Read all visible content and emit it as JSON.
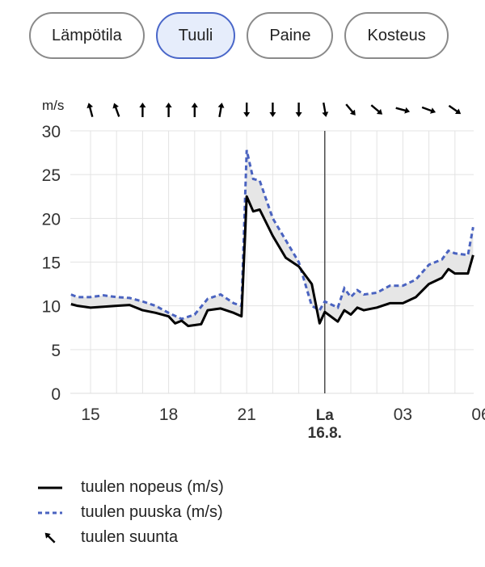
{
  "tabs": [
    {
      "label": "Lämpötila",
      "selected": false
    },
    {
      "label": "Tuuli",
      "selected": true
    },
    {
      "label": "Paine",
      "selected": false
    },
    {
      "label": "Kosteus",
      "selected": false
    }
  ],
  "chart_data": {
    "type": "line",
    "unit_label": "m/s",
    "ylim": [
      0,
      30
    ],
    "yticks": [
      0,
      5,
      10,
      15,
      20,
      25,
      30
    ],
    "xlim_hours": [
      14.23,
      29.7
    ],
    "xticks": [
      {
        "h": 15,
        "label": "15"
      },
      {
        "h": 18,
        "label": "18"
      },
      {
        "h": 21,
        "label": "21"
      },
      {
        "h": 24,
        "label": "La",
        "sub": "16.8."
      },
      {
        "h": 27,
        "label": "03"
      },
      {
        "h": 30,
        "label": "06"
      }
    ],
    "current_time_hour": 24,
    "series": [
      {
        "name": "tuulen nopeus (m/s)",
        "color": "#000000",
        "style": "solid",
        "x": [
          14.25,
          14.5,
          15,
          15.5,
          16,
          16.5,
          17,
          17.5,
          18,
          18.25,
          18.5,
          18.75,
          19,
          19.25,
          19.5,
          20,
          20.5,
          20.8,
          21,
          21.25,
          21.5,
          22,
          22.5,
          23,
          23.5,
          23.8,
          24,
          24.5,
          24.75,
          25,
          25.25,
          25.5,
          26,
          26.5,
          27,
          27.5,
          28,
          28.5,
          28.75,
          29,
          29.5,
          29.7
        ],
        "values": [
          10.2,
          10.0,
          9.8,
          9.9,
          10.0,
          10.1,
          9.5,
          9.2,
          8.8,
          8.0,
          8.3,
          7.7,
          7.8,
          7.9,
          9.5,
          9.7,
          9.2,
          8.8,
          22.5,
          20.8,
          21.0,
          18.0,
          15.5,
          14.5,
          12.5,
          8.0,
          9.3,
          8.2,
          9.5,
          9.0,
          9.8,
          9.5,
          9.8,
          10.3,
          10.3,
          11.0,
          12.5,
          13.2,
          14.2,
          13.7,
          13.7,
          15.8
        ]
      },
      {
        "name": "tuulen puuska (m/s)",
        "color": "#4a63c0",
        "style": "dashed",
        "x": [
          14.25,
          14.5,
          15,
          15.5,
          16,
          16.5,
          17,
          17.5,
          18,
          18.5,
          19,
          19.5,
          20,
          20.5,
          20.8,
          21,
          21.25,
          21.5,
          22,
          22.5,
          23,
          23.5,
          23.8,
          24,
          24.5,
          24.75,
          25,
          25.25,
          25.5,
          26,
          26.5,
          27,
          27.5,
          28,
          28.5,
          28.75,
          29,
          29.5,
          29.7
        ],
        "values": [
          11.3,
          11.0,
          11.0,
          11.2,
          11.0,
          10.9,
          10.5,
          10.0,
          9.2,
          8.5,
          9.0,
          10.8,
          11.3,
          10.3,
          10.0,
          27.8,
          24.5,
          24.3,
          20.0,
          17.5,
          15.0,
          10.0,
          9.5,
          10.5,
          9.8,
          12.0,
          11.0,
          11.8,
          11.3,
          11.5,
          12.3,
          12.3,
          13.0,
          14.7,
          15.3,
          16.3,
          16.0,
          15.8,
          19.0
        ]
      }
    ],
    "wind_direction": {
      "label": "tuulen suunta",
      "hours": [
        15,
        16,
        17,
        18,
        19,
        20,
        21,
        22,
        23,
        24,
        25,
        26,
        27,
        28,
        29
      ],
      "degrees_pointing": [
        -15,
        -20,
        0,
        0,
        0,
        10,
        180,
        180,
        180,
        170,
        140,
        130,
        105,
        110,
        125
      ]
    }
  }
}
